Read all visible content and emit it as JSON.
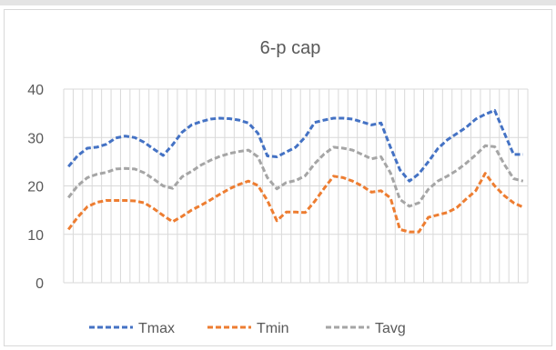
{
  "chart_data": {
    "type": "line",
    "title": "6-p cap",
    "xlabel": "",
    "ylabel": "",
    "ylim": [
      0,
      40
    ],
    "yticks": [
      "0",
      "10",
      "20",
      "30",
      "40"
    ],
    "grid": true,
    "legend_position": "bottom",
    "x": [
      1,
      2,
      3,
      4,
      5,
      6,
      7,
      8,
      9,
      10,
      11,
      12,
      13,
      14,
      15,
      16,
      17,
      18,
      19,
      20,
      21,
      22,
      23,
      24,
      25,
      26,
      27,
      28,
      29,
      30,
      31,
      32,
      33,
      34,
      35,
      36,
      37,
      38,
      39,
      40,
      41,
      42,
      43,
      44,
      45,
      46,
      47,
      48,
      49
    ],
    "series": [
      {
        "name": "Tmax",
        "color": "#4472c4",
        "dash": "dashed",
        "values": [
          24.0,
          26.3,
          27.8,
          28.0,
          28.6,
          29.9,
          30.3,
          30.0,
          29.0,
          27.6,
          26.3,
          28.5,
          31.1,
          32.6,
          33.3,
          33.8,
          34.0,
          33.9,
          33.6,
          33.0,
          30.9,
          26.2,
          26.0,
          27.0,
          28.0,
          30.1,
          33.1,
          33.6,
          34.0,
          34.0,
          33.8,
          33.2,
          32.6,
          33.0,
          28.0,
          23.3,
          21.0,
          22.5,
          25.0,
          27.7,
          29.5,
          30.8,
          32.1,
          33.8,
          34.8,
          35.6,
          31.0,
          26.5,
          26.5
        ]
      },
      {
        "name": "Tmin",
        "color": "#ed7d31",
        "dash": "dashed",
        "values": [
          11.0,
          13.6,
          15.7,
          16.6,
          17.0,
          17.0,
          17.0,
          16.9,
          16.5,
          15.3,
          13.9,
          12.6,
          13.7,
          15.0,
          16.0,
          17.1,
          18.3,
          19.4,
          20.3,
          21.0,
          20.1,
          17.0,
          12.8,
          14.6,
          14.6,
          14.5,
          16.8,
          19.5,
          22.0,
          21.7,
          21.0,
          20.0,
          18.7,
          19.0,
          17.5,
          11.0,
          10.5,
          10.5,
          13.5,
          14.0,
          14.5,
          15.5,
          17.3,
          19.0,
          22.6,
          20.0,
          18.0,
          16.5,
          15.6
        ]
      },
      {
        "name": "Tavg",
        "color": "#a5a5a5",
        "dash": "dashed",
        "values": [
          17.6,
          20.1,
          21.7,
          22.4,
          22.8,
          23.5,
          23.6,
          23.5,
          22.7,
          21.4,
          20.0,
          19.5,
          21.9,
          23.0,
          24.3,
          25.3,
          26.1,
          26.7,
          27.1,
          27.4,
          26.0,
          21.7,
          19.4,
          20.7,
          21.1,
          22.1,
          24.6,
          26.6,
          28.0,
          27.8,
          27.4,
          26.5,
          25.6,
          26.0,
          22.7,
          17.2,
          15.8,
          16.5,
          19.3,
          21.0,
          22.0,
          23.2,
          24.7,
          26.4,
          28.3,
          28.1,
          24.5,
          21.5,
          21.0
        ]
      }
    ]
  }
}
